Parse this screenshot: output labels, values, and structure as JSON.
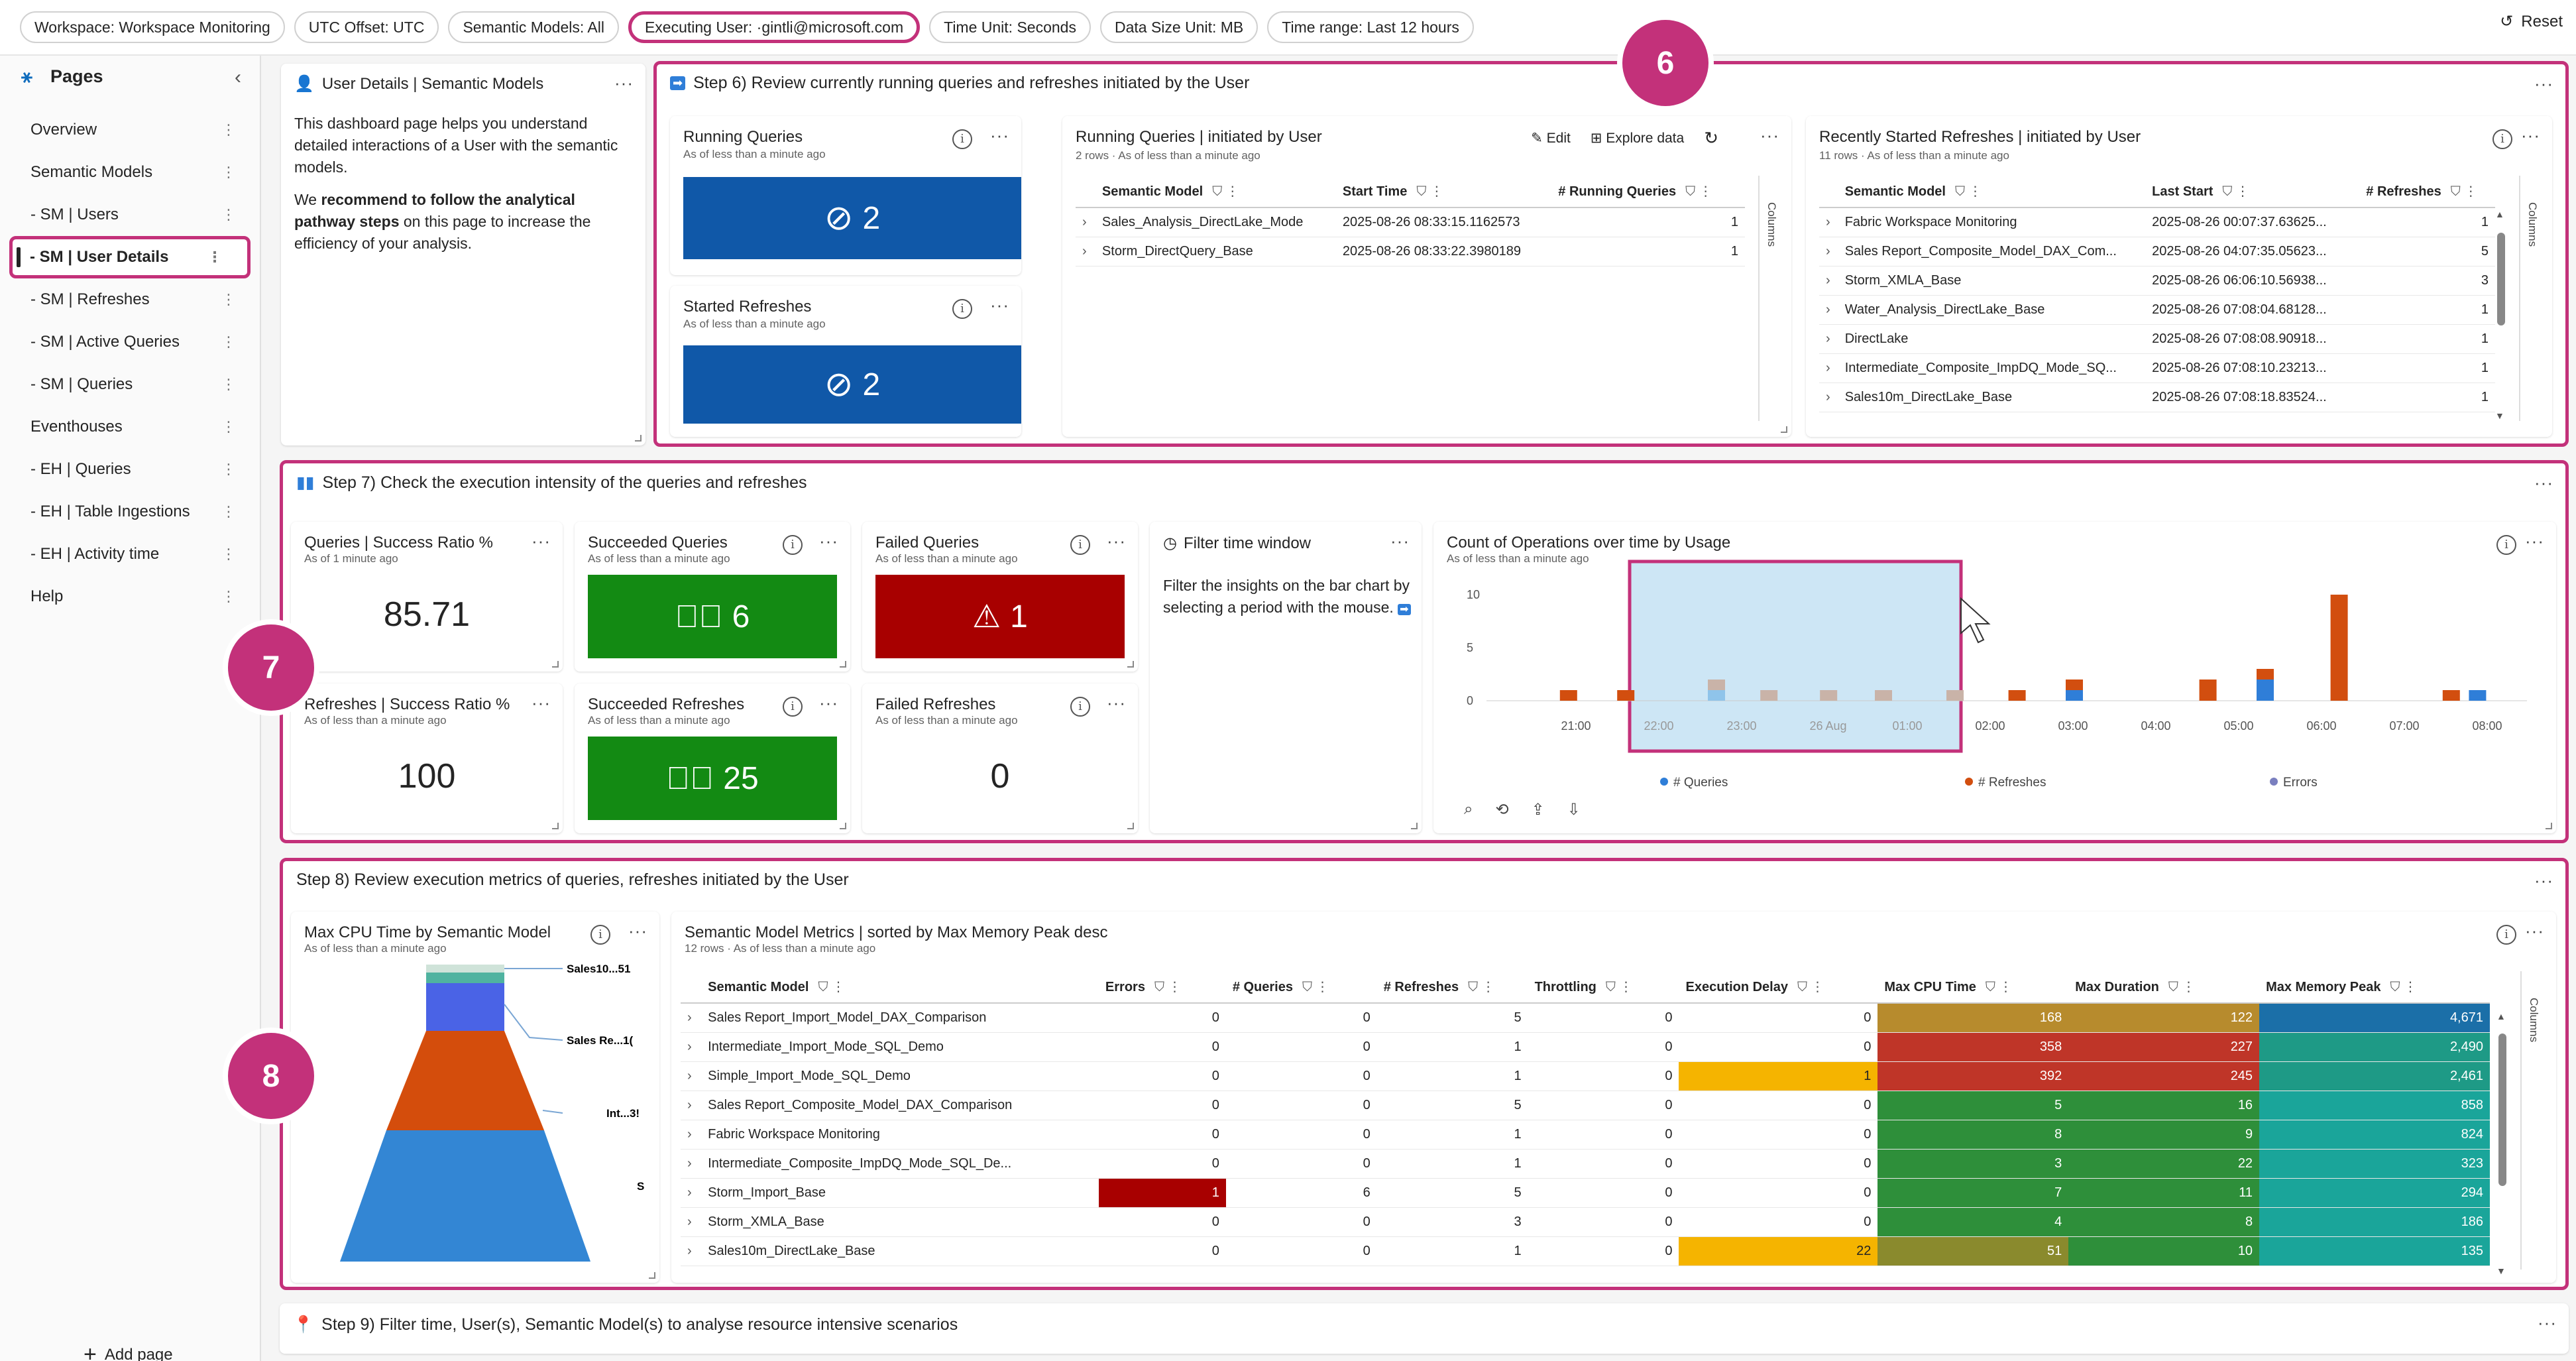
{
  "filters": [
    {
      "label": "Workspace: Workspace Monitoring",
      "highlight": false
    },
    {
      "label": "UTC Offset: UTC",
      "highlight": false
    },
    {
      "label": "Semantic Models: All",
      "highlight": false
    },
    {
      "label": "Executing User:  ·gintli@microsoft.com",
      "highlight": true
    },
    {
      "label": "Time Unit: Seconds",
      "highlight": false
    },
    {
      "label": "Data Size Unit: MB",
      "highlight": false
    },
    {
      "label": "Time range: Last 12 hours",
      "highlight": false
    }
  ],
  "reset_label": "Reset",
  "sidebar": {
    "title": "Pages",
    "items": [
      {
        "label": "Overview"
      },
      {
        "label": "Semantic Models"
      },
      {
        "label": "- SM | Users"
      },
      {
        "label": "- SM | User Details",
        "active": true
      },
      {
        "label": "- SM | Refreshes"
      },
      {
        "label": "- SM | Active Queries"
      },
      {
        "label": "- SM | Queries"
      },
      {
        "label": "Eventhouses"
      },
      {
        "label": "- EH | Queries"
      },
      {
        "label": "- EH | Table Ingestions"
      },
      {
        "label": "- EH | Activity time"
      },
      {
        "label": "Help"
      }
    ],
    "add_page": "Add page"
  },
  "intro": {
    "title": "User Details | Semantic Models",
    "p1": "This dashboard page helps you understand detailed interactions of a User with the semantic models.",
    "p2_pre": "We ",
    "p2_bold": "recommend to follow the analytical pathway steps",
    "p2_post": " on this page to increase the efficiency of your analysis."
  },
  "step6": {
    "title": "Step 6) Review currently running queries and refreshes initiated by the User",
    "badge": "6",
    "running_queries": {
      "title": "Running Queries",
      "sub": "As of less than a minute ago",
      "value": "2",
      "color": "#1058a8"
    },
    "started_refreshes": {
      "title": "Started Refreshes",
      "sub": "As of less than a minute ago",
      "value": "2",
      "color": "#1058a8"
    },
    "rq_table": {
      "title": "Running Queries | initiated by User",
      "sub": "2 rows · As of less than a minute ago",
      "edit": "Edit",
      "explore": "Explore data",
      "columns": [
        "Semantic Model",
        "Start Time",
        "# Running Queries"
      ],
      "rows": [
        [
          "Sales_Analysis_DirectLake_Mode",
          "2025-08-26 08:33:15.1162573",
          "1"
        ],
        [
          "Storm_DirectQuery_Base",
          "2025-08-26 08:33:22.3980189",
          "1"
        ]
      ],
      "columns_label": "Columns"
    },
    "rr_table": {
      "title": "Recently Started Refreshes | initiated by User",
      "sub": "11 rows · As of less than a minute ago",
      "columns": [
        "Semantic Model",
        "Last Start",
        "# Refreshes"
      ],
      "rows": [
        [
          "Fabric Workspace Monitoring",
          "2025-08-26 00:07:37.63625...",
          "1"
        ],
        [
          "Sales Report_Composite_Model_DAX_Com...",
          "2025-08-26 04:07:35.05623...",
          "5"
        ],
        [
          "Storm_XMLA_Base",
          "2025-08-26 06:06:10.56938...",
          "3"
        ],
        [
          "Water_Analysis_DirectLake_Base",
          "2025-08-26 07:08:04.68128...",
          "1"
        ],
        [
          "DirectLake",
          "2025-08-26 07:08:08.90918...",
          "1"
        ],
        [
          "Intermediate_Composite_ImpDQ_Mode_SQ...",
          "2025-08-26 07:08:10.23213...",
          "1"
        ],
        [
          "Sales10m_DirectLake_Base",
          "2025-08-26 07:08:18.83524...",
          "1"
        ]
      ],
      "columns_label": "Columns"
    }
  },
  "step7": {
    "title": "Step 7) Check the execution intensity of the queries and refreshes",
    "badge": "7",
    "q_ratio": {
      "title": "Queries | Success Ratio %",
      "sub": "As of 1 minute ago",
      "value": "85.71"
    },
    "r_ratio": {
      "title": "Refreshes | Success Ratio %",
      "sub": "As of less than a minute ago",
      "value": "100"
    },
    "succ_q": {
      "title": "Succeeded Queries",
      "sub": "As of less than a minute ago",
      "value": "6",
      "color": "#138a13"
    },
    "succ_r": {
      "title": "Succeeded Refreshes",
      "sub": "As of less than a minute ago",
      "value": "25",
      "color": "#138a13"
    },
    "fail_q": {
      "title": "Failed Queries",
      "sub": "As of less than a minute ago",
      "value": "1",
      "color": "#a80000"
    },
    "fail_r": {
      "title": "Failed Refreshes",
      "sub": "As of less than a minute ago",
      "value": "0"
    },
    "filter_window": {
      "title": "Filter time window",
      "text": "Filter the insights on the bar chart by selecting a period with the mouse."
    },
    "chart": {
      "title": "Count of Operations over time by Usage",
      "sub": "As of less than a minute ago"
    }
  },
  "chart_data": {
    "type": "bar",
    "title": "Count of Operations over time by Usage",
    "categories": [
      "20:30",
      "21:30",
      "22:00",
      "22:30",
      "23:00",
      "23:30",
      "00:00",
      "00:30",
      "01:00",
      "04:00",
      "06:00",
      "07:00",
      "08:00",
      "08:30"
    ],
    "x_ticks": [
      "21:00",
      "22:00",
      "23:00",
      "26 Aug",
      "01:00",
      "02:00",
      "03:00",
      "04:00",
      "05:00",
      "06:00",
      "07:00",
      "08:00"
    ],
    "ylim": [
      0,
      10
    ],
    "y_ticks": [
      0,
      5,
      10
    ],
    "series": [
      {
        "name": "# Queries",
        "color": "#2f7ed8",
        "values": [
          0,
          0,
          1,
          0,
          0,
          0,
          0,
          0,
          1,
          0,
          2,
          0,
          0,
          1
        ]
      },
      {
        "name": "# Refreshes",
        "color": "#d24e0f",
        "values": [
          1,
          1,
          1,
          1,
          1,
          1,
          1,
          1,
          1,
          2,
          1,
          10,
          1,
          0
        ]
      },
      {
        "name": "Errors",
        "color": "#7a7fbf",
        "values": [
          0,
          0,
          0,
          0,
          0,
          0,
          0,
          0,
          0,
          0,
          0,
          0,
          0,
          0
        ]
      }
    ],
    "legend_position": "bottom"
  },
  "step8": {
    "title": "Step 8) Review execution metrics of queries, refreshes initiated by the User",
    "badge": "8",
    "funnel": {
      "title": "Max CPU Time by Semantic Model",
      "sub": "As of less than a minute ago",
      "labels": [
        "Sales10...51",
        "Sales Re...1(",
        "Int...3!",
        "S"
      ]
    },
    "metrics": {
      "title": "Semantic Model Metrics | sorted by Max Memory Peak desc",
      "sub": "12 rows · As of less than a minute ago",
      "columns": [
        "Semantic Model",
        "Errors",
        "# Queries",
        "# Refreshes",
        "Throttling",
        "Execution Delay",
        "Max CPU Time",
        "Max Duration",
        "Max Memory Peak"
      ],
      "rows": [
        [
          "Sales Report_Import_Model_DAX_Comparison",
          "0",
          "0",
          "5",
          "0",
          "0",
          "168",
          "122",
          "4,671"
        ],
        [
          "Intermediate_Import_Mode_SQL_Demo",
          "0",
          "0",
          "1",
          "0",
          "0",
          "358",
          "227",
          "2,490"
        ],
        [
          "Simple_Import_Mode_SQL_Demo",
          "0",
          "0",
          "1",
          "0",
          "1",
          "392",
          "245",
          "2,461"
        ],
        [
          "Sales Report_Composite_Model_DAX_Comparison",
          "0",
          "0",
          "5",
          "0",
          "0",
          "5",
          "16",
          "858"
        ],
        [
          "Fabric Workspace Monitoring",
          "0",
          "0",
          "1",
          "0",
          "0",
          "8",
          "9",
          "824"
        ],
        [
          "Intermediate_Composite_ImpDQ_Mode_SQL_De...",
          "0",
          "0",
          "1",
          "0",
          "0",
          "3",
          "22",
          "323"
        ],
        [
          "Storm_Import_Base",
          "1",
          "6",
          "5",
          "0",
          "0",
          "7",
          "11",
          "294"
        ],
        [
          "Storm_XMLA_Base",
          "0",
          "0",
          "3",
          "0",
          "0",
          "4",
          "8",
          "186"
        ],
        [
          "Sales10m_DirectLake_Base",
          "0",
          "0",
          "1",
          "0",
          "22",
          "51",
          "10",
          "135"
        ]
      ],
      "columns_label": "Columns"
    }
  },
  "step9": {
    "title": "Step 9) Filter time, User(s), Semantic Model(s) to analyse resource intensive scenarios"
  }
}
